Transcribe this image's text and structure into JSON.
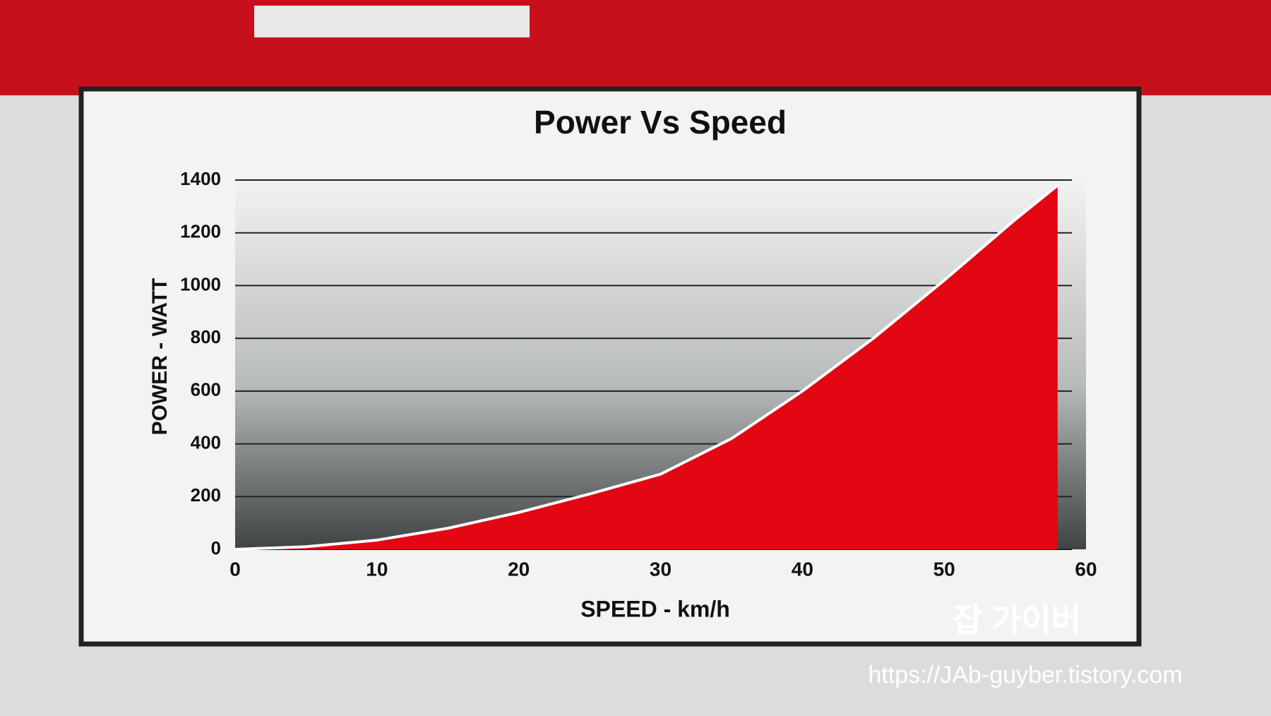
{
  "chart_data": {
    "type": "area",
    "title": "Power Vs Speed",
    "x_label": "SPEED - km/h",
    "y_label": "POWER - WATT",
    "x": [
      0,
      5,
      10,
      15,
      20,
      25,
      30,
      35,
      40,
      45,
      50,
      55,
      58
    ],
    "values": [
      0,
      10,
      35,
      80,
      140,
      210,
      285,
      420,
      600,
      800,
      1020,
      1250,
      1380
    ],
    "color": "#e30613",
    "xlim": [
      0,
      60
    ],
    "xticks": [
      0,
      10,
      20,
      30,
      40,
      50,
      60
    ],
    "ylim": [
      0,
      1400
    ],
    "yticks": [
      0,
      200,
      400,
      600,
      800,
      1000,
      1200,
      1400
    ],
    "grid": true
  },
  "watermark": {
    "title": "잡 가이버",
    "url": "https://JAb-guyber.tistory.com"
  }
}
